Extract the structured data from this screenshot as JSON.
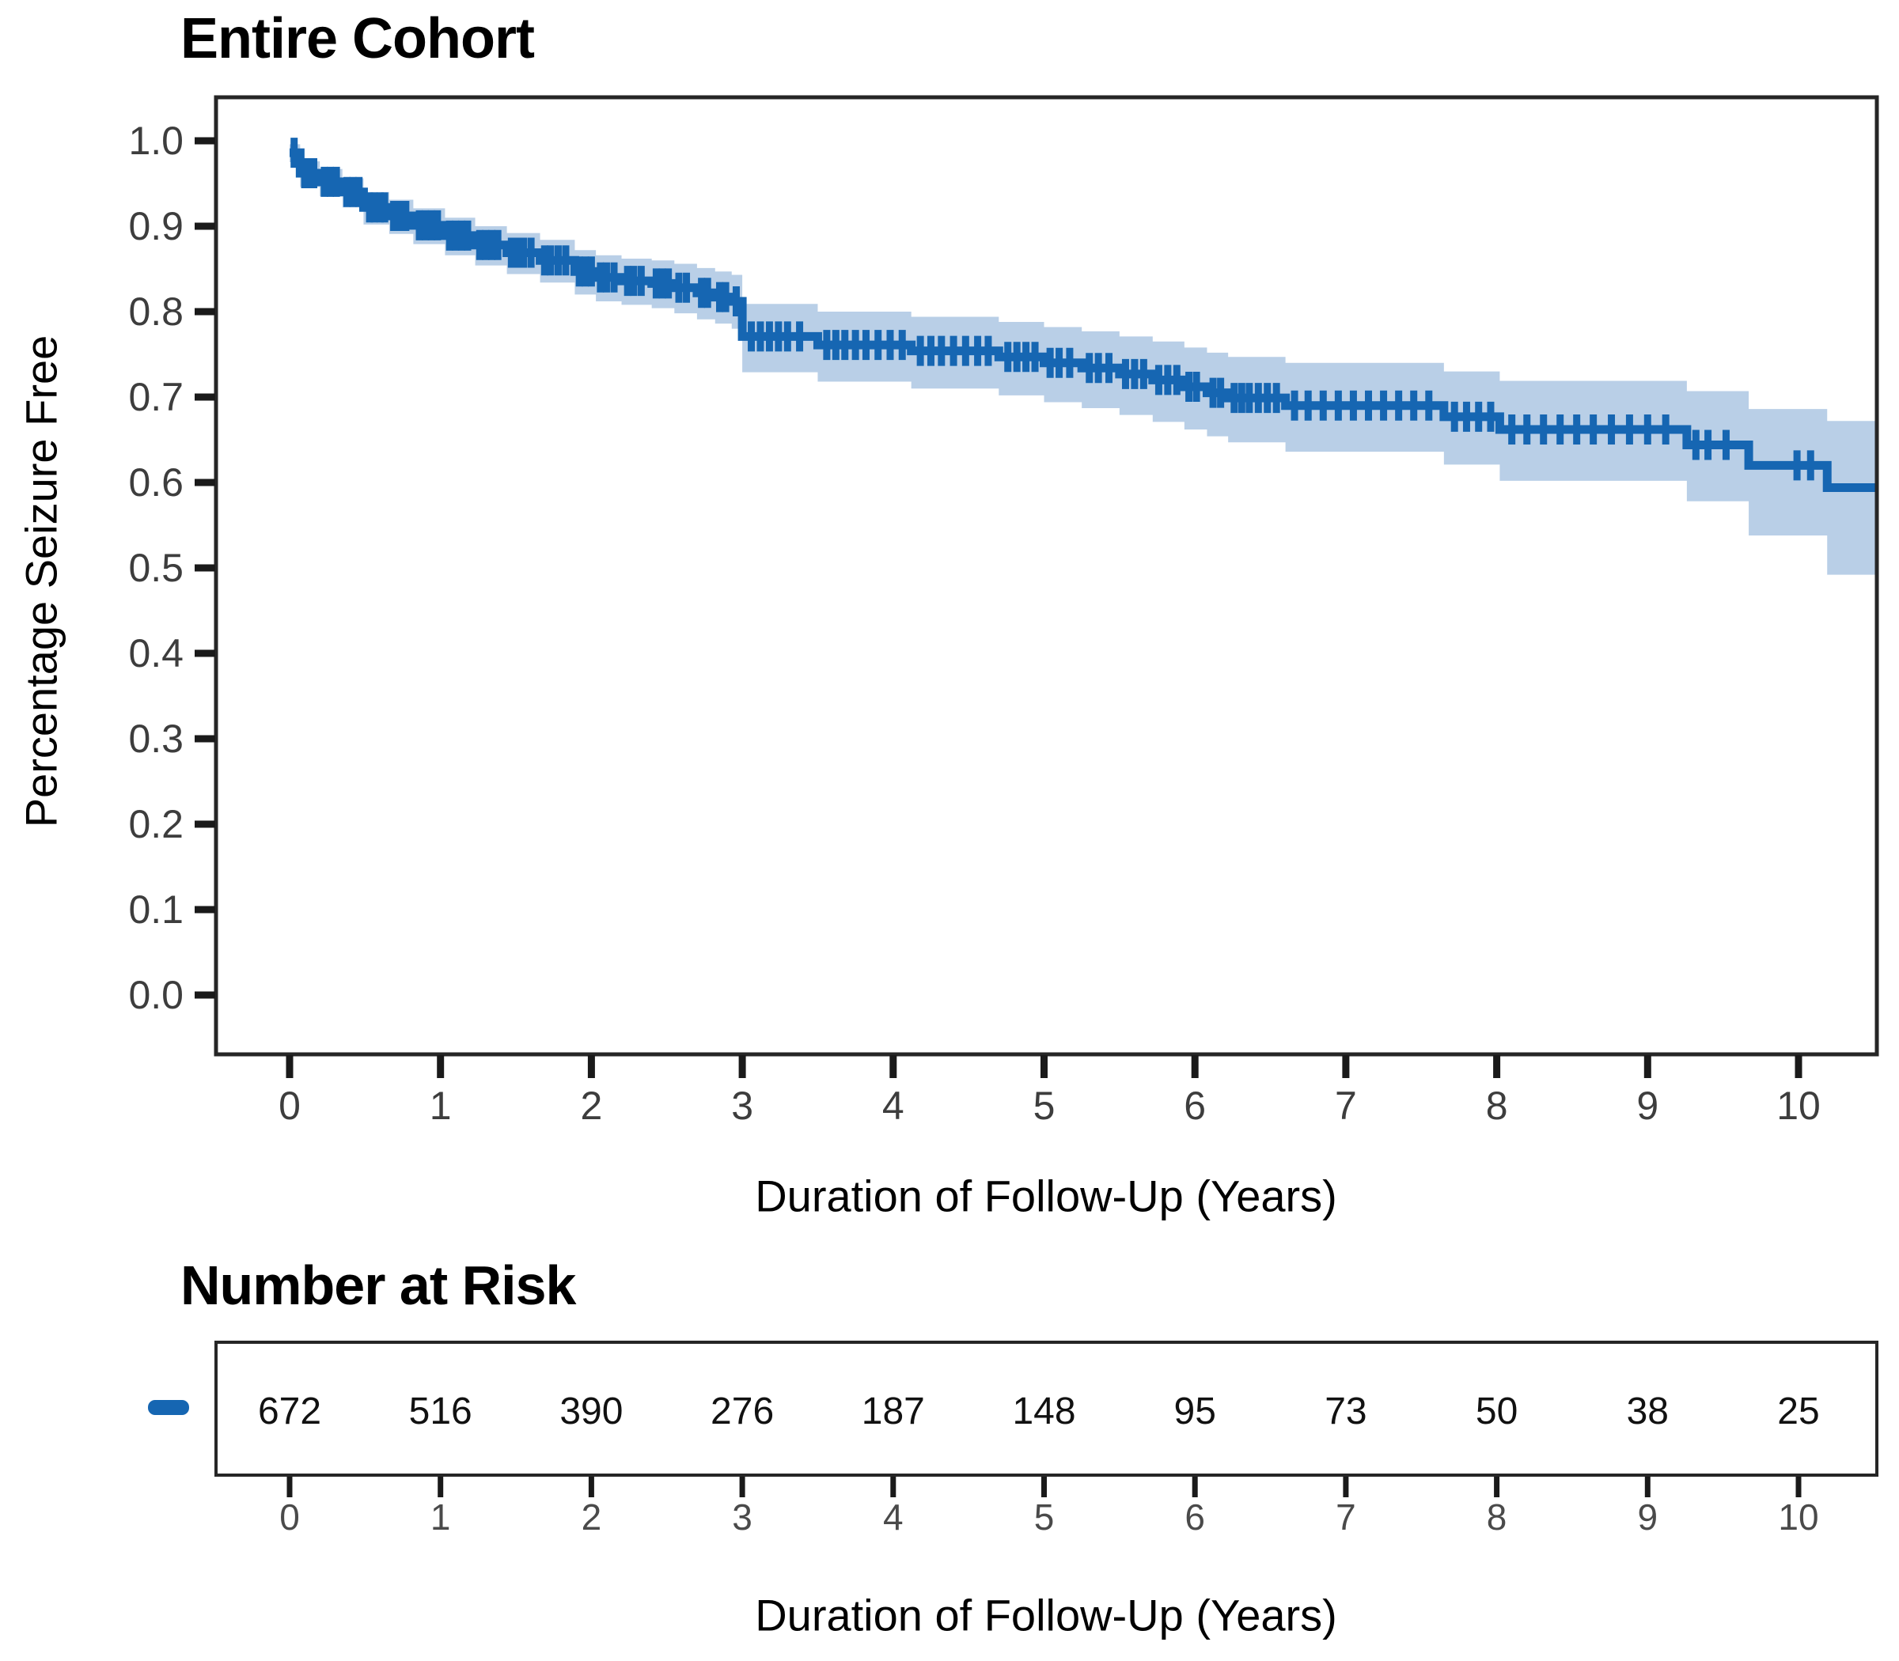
{
  "title": "Entire Cohort",
  "risk_table": {
    "heading": "Number at Risk",
    "x_label": "Duration of Follow-Up (Years)"
  },
  "colors": {
    "curve": "#1666b2",
    "band": "#b9cfe7",
    "axis": "#262626",
    "tick": "#1a1a1a",
    "tick_label": "#3d3d3d",
    "table_tick_label": "#4a4a4a",
    "risk_count": "#111111"
  },
  "chart_data": {
    "type": "line",
    "subtype": "kaplan-meier-step",
    "title": "Entire Cohort",
    "xlabel": "Duration of Follow-Up (Years)",
    "ylabel": "Percentage Seizure Free",
    "xlim": [
      -0.5,
      10.52
    ],
    "ylim": [
      -0.07,
      1.05
    ],
    "x_ticks": [
      0,
      1,
      2,
      3,
      4,
      5,
      6,
      7,
      8,
      9,
      10
    ],
    "y_tick_labels": [
      "0.0",
      "0.1",
      "0.2",
      "0.3",
      "0.4",
      "0.5",
      "0.6",
      "0.7",
      "0.8",
      "0.9",
      "1.0"
    ],
    "y_ticks": [
      0.0,
      0.1,
      0.2,
      0.3,
      0.4,
      0.5,
      0.6,
      0.7,
      0.8,
      0.9,
      1.0
    ],
    "grid": false,
    "legend_position": "left-of-risk-table",
    "series": [
      {
        "name": "Entire Cohort",
        "end_time": 10.52,
        "steps": [
          [
            0.0,
            0.986,
            0.975,
            0.996
          ],
          [
            0.07,
            0.962,
            0.946,
            0.976
          ],
          [
            0.2,
            0.952,
            0.935,
            0.967
          ],
          [
            0.35,
            0.94,
            0.922,
            0.956
          ],
          [
            0.49,
            0.922,
            0.902,
            0.94
          ],
          [
            0.66,
            0.912,
            0.891,
            0.931
          ],
          [
            0.82,
            0.901,
            0.879,
            0.921
          ],
          [
            1.03,
            0.889,
            0.866,
            0.91
          ],
          [
            1.23,
            0.878,
            0.854,
            0.9
          ],
          [
            1.44,
            0.869,
            0.844,
            0.892
          ],
          [
            1.66,
            0.86,
            0.834,
            0.884
          ],
          [
            1.89,
            0.847,
            0.82,
            0.872
          ],
          [
            2.03,
            0.84,
            0.812,
            0.866
          ],
          [
            2.2,
            0.836,
            0.808,
            0.862
          ],
          [
            2.4,
            0.833,
            0.804,
            0.86
          ],
          [
            2.55,
            0.828,
            0.798,
            0.856
          ],
          [
            2.7,
            0.822,
            0.791,
            0.851
          ],
          [
            2.82,
            0.817,
            0.786,
            0.847
          ],
          [
            2.93,
            0.812,
            0.78,
            0.843
          ],
          [
            3.0,
            0.771,
            0.729,
            0.809
          ],
          [
            3.5,
            0.761,
            0.718,
            0.8
          ],
          [
            4.12,
            0.754,
            0.71,
            0.794
          ],
          [
            4.7,
            0.747,
            0.702,
            0.788
          ],
          [
            5.0,
            0.74,
            0.694,
            0.782
          ],
          [
            5.25,
            0.734,
            0.687,
            0.777
          ],
          [
            5.5,
            0.727,
            0.679,
            0.771
          ],
          [
            5.72,
            0.72,
            0.671,
            0.765
          ],
          [
            5.93,
            0.712,
            0.662,
            0.758
          ],
          [
            6.08,
            0.705,
            0.654,
            0.752
          ],
          [
            6.22,
            0.699,
            0.647,
            0.747
          ],
          [
            6.6,
            0.69,
            0.636,
            0.74
          ],
          [
            7.65,
            0.677,
            0.621,
            0.73
          ],
          [
            8.02,
            0.662,
            0.602,
            0.719
          ],
          [
            9.26,
            0.644,
            0.578,
            0.707
          ],
          [
            9.67,
            0.62,
            0.538,
            0.686
          ],
          [
            10.19,
            0.594,
            0.492,
            0.672
          ]
        ],
        "censor_times": [
          0.03,
          0.1,
          0.13,
          0.16,
          0.23,
          0.27,
          0.31,
          0.38,
          0.42,
          0.46,
          0.53,
          0.56,
          0.6,
          0.63,
          0.69,
          0.73,
          0.77,
          0.86,
          0.9,
          0.94,
          0.98,
          1.06,
          1.1,
          1.14,
          1.18,
          1.26,
          1.3,
          1.34,
          1.38,
          1.47,
          1.51,
          1.55,
          1.6,
          1.69,
          1.73,
          1.78,
          1.83,
          1.92,
          1.96,
          2.0,
          2.06,
          2.1,
          2.15,
          2.24,
          2.28,
          2.33,
          2.43,
          2.47,
          2.51,
          2.58,
          2.63,
          2.73,
          2.77,
          2.85,
          2.89,
          2.96,
          3.06,
          3.12,
          3.18,
          3.24,
          3.3,
          3.38,
          3.56,
          3.62,
          3.68,
          3.75,
          3.82,
          3.9,
          3.98,
          4.06,
          4.18,
          4.25,
          4.32,
          4.4,
          4.48,
          4.56,
          4.63,
          4.76,
          4.82,
          4.88,
          4.94,
          5.04,
          5.1,
          5.17,
          5.3,
          5.36,
          5.43,
          5.54,
          5.6,
          5.66,
          5.76,
          5.82,
          5.88,
          5.96,
          6.01,
          6.12,
          6.17,
          6.26,
          6.31,
          6.36,
          6.42,
          6.48,
          6.54,
          6.66,
          6.75,
          6.85,
          6.95,
          7.05,
          7.15,
          7.25,
          7.35,
          7.45,
          7.55,
          7.72,
          7.8,
          7.88,
          7.96,
          8.1,
          8.2,
          8.31,
          8.42,
          8.53,
          8.64,
          8.76,
          8.88,
          9.0,
          9.12,
          9.32,
          9.4,
          9.52,
          9.99,
          10.08
        ]
      }
    ],
    "number_at_risk": {
      "heading": "Number at Risk",
      "x_label": "Duration of Follow-Up (Years)",
      "times": [
        0,
        1,
        2,
        3,
        4,
        5,
        6,
        7,
        8,
        9,
        10
      ],
      "counts": [
        672,
        516,
        390,
        276,
        187,
        148,
        95,
        73,
        50,
        38,
        25
      ]
    }
  }
}
